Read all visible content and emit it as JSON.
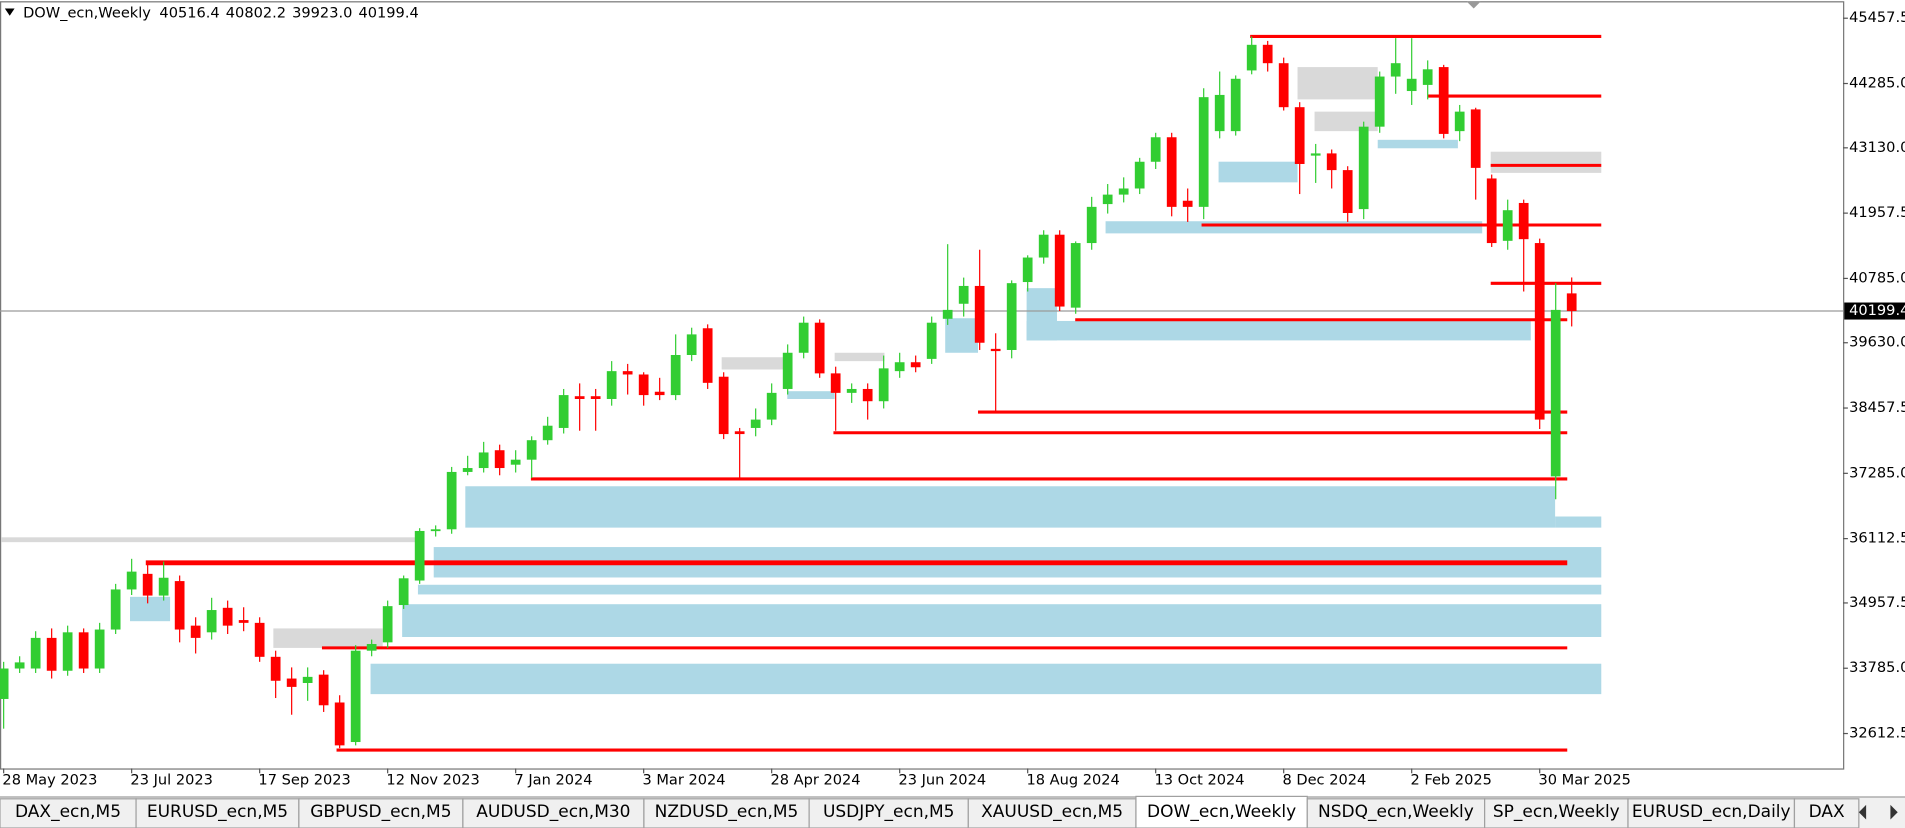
{
  "header": {
    "symbol": "DOW_ecn,Weekly",
    "ohlc": [
      "40516.4",
      "40802.2",
      "39923.0",
      "40199.4"
    ]
  },
  "chart_data": {
    "type": "candlestick",
    "categories": [
      "28 May 2023",
      null,
      null,
      null,
      null,
      null,
      null,
      null,
      "23 Jul 2023",
      null,
      null,
      null,
      null,
      null,
      null,
      null,
      "17 Sep 2023",
      null,
      null,
      null,
      null,
      null,
      null,
      null,
      "12 Nov 2023",
      null,
      null,
      null,
      null,
      null,
      null,
      null,
      "7 Jan 2024",
      null,
      null,
      null,
      null,
      null,
      null,
      null,
      "3 Mar 2024",
      null,
      null,
      null,
      null,
      null,
      null,
      null,
      "28 Apr 2024",
      null,
      null,
      null,
      null,
      null,
      null,
      null,
      "23 Jun 2024",
      null,
      null,
      null,
      null,
      null,
      null,
      null,
      "18 Aug 2024",
      null,
      null,
      null,
      null,
      null,
      null,
      null,
      "13 Oct 2024",
      null,
      null,
      null,
      null,
      null,
      null,
      null,
      "8 Dec 2024",
      null,
      null,
      null,
      null,
      null,
      null,
      null,
      "2 Feb 2025",
      null,
      null,
      null,
      null,
      null,
      null,
      null,
      "30 Mar 2025",
      null,
      null
    ],
    "open": [
      33233,
      33780,
      33780,
      34330,
      33740,
      34430,
      33780,
      34480,
      35200,
      35480,
      35090,
      35350,
      34550,
      34430,
      34870,
      34650,
      34600,
      33990,
      33600,
      33520,
      33670,
      33170,
      32460,
      34100,
      34250,
      34920,
      35360,
      36250,
      36280,
      37310,
      37380,
      37700,
      37440,
      37530,
      37880,
      38100,
      38670,
      38670,
      38620,
      39120,
      39060,
      38750,
      38690,
      39410,
      39890,
      39020,
      38040,
      38100,
      38250,
      38800,
      39450,
      39990,
      39080,
      38730,
      38800,
      38580,
      39120,
      39280,
      39340,
      40060,
      40330,
      40650,
      39520,
      39500,
      40720,
      41160,
      41570,
      40260,
      41420,
      42120,
      42290,
      42400,
      42880,
      43320,
      42180,
      42070,
      43430,
      43430,
      44520,
      44980,
      44650,
      43860,
      42990,
      43030,
      42730,
      42030,
      43510,
      44410,
      44150,
      44260,
      44580,
      43430,
      43820,
      42580,
      41460,
      42140,
      41420,
      37230,
      40516.4
    ],
    "high": [
      33900,
      34000,
      34450,
      34500,
      34550,
      34500,
      34600,
      35300,
      35750,
      35650,
      35700,
      35450,
      34700,
      35050,
      35000,
      34880,
      34700,
      34100,
      33800,
      33800,
      33750,
      33300,
      34200,
      34300,
      35000,
      35450,
      36300,
      36350,
      37400,
      37600,
      37850,
      37800,
      37700,
      37950,
      38300,
      38800,
      38900,
      38800,
      39300,
      39250,
      39100,
      39000,
      39780,
      39900,
      39960,
      39100,
      38100,
      38450,
      38900,
      39600,
      40100,
      40050,
      39200,
      38900,
      38900,
      39400,
      39450,
      39400,
      40100,
      41400,
      40800,
      41300,
      39800,
      40750,
      41200,
      41650,
      41650,
      41450,
      42250,
      42480,
      42600,
      42950,
      43400,
      43400,
      42400,
      44200,
      44500,
      44430,
      45130,
      45050,
      44750,
      43950,
      43200,
      43100,
      42800,
      43600,
      44500,
      45100,
      45100,
      44700,
      44620,
      43900,
      43850,
      42650,
      42200,
      42200,
      41500,
      40700,
      40802.2
    ],
    "low": [
      32700,
      33700,
      33700,
      33600,
      33650,
      33700,
      33700,
      34400,
      35100,
      34950,
      35000,
      34250,
      34050,
      34300,
      34400,
      34450,
      33900,
      33250,
      32950,
      33200,
      33000,
      32350,
      32400,
      34000,
      34150,
      34850,
      35300,
      36150,
      36200,
      37250,
      37300,
      37250,
      37300,
      37200,
      37800,
      38000,
      38050,
      38050,
      38500,
      38700,
      38500,
      38600,
      38600,
      39300,
      38800,
      37900,
      37200,
      37950,
      38150,
      38700,
      39350,
      39000,
      38050,
      38550,
      38250,
      38450,
      39000,
      39100,
      39250,
      39950,
      40100,
      39500,
      38400,
      39350,
      40550,
      41050,
      40200,
      40150,
      41300,
      41950,
      42150,
      42300,
      42750,
      41900,
      41800,
      41850,
      43300,
      43350,
      44450,
      44500,
      43800,
      42300,
      42500,
      42400,
      41800,
      41850,
      43400,
      44100,
      43900,
      44000,
      43300,
      43250,
      42200,
      41350,
      41300,
      40550,
      38080,
      36820,
      39923.0
    ],
    "close": [
      33780,
      33890,
      34330,
      33740,
      34430,
      33780,
      34480,
      35200,
      35520,
      35090,
      35410,
      34480,
      34330,
      34830,
      34550,
      34600,
      33990,
      33560,
      33450,
      33630,
      33120,
      32400,
      34100,
      34220,
      34900,
      35400,
      36250,
      36280,
      37310,
      37380,
      37660,
      37380,
      37530,
      37880,
      38140,
      38690,
      38620,
      38620,
      39120,
      39060,
      38690,
      38690,
      39410,
      39780,
      38910,
      37990,
      37990,
      38250,
      38730,
      39450,
      39990,
      39080,
      38730,
      38800,
      38580,
      39170,
      39280,
      39190,
      39990,
      40220,
      40650,
      39630,
      39480,
      40700,
      41160,
      41570,
      40280,
      41420,
      42070,
      42290,
      42400,
      42880,
      43320,
      42070,
      42070,
      44040,
      44080,
      44370,
      44980,
      44650,
      43860,
      42840,
      43030,
      42730,
      41960,
      43510,
      44410,
      44650,
      44370,
      44540,
      43380,
      43780,
      42770,
      41420,
      42010,
      41490,
      38250,
      40220,
      40199.4
    ],
    "up_color": "#32cd32",
    "down_color": "#ff0000",
    "current_price": 40199.4,
    "levels": {
      "color": "#ff0000",
      "prices": [
        45130,
        44060,
        42815,
        41745,
        40697,
        40043,
        38385,
        38013,
        37184,
        35678,
        34150,
        32316
      ]
    },
    "zones": [
      {
        "low": 36310,
        "high": 37053,
        "color": "#add8e6"
      },
      {
        "low": 36310,
        "high": 36510,
        "color": "#add8e6"
      },
      {
        "low": 35415,
        "high": 35961,
        "color": "#add8e6"
      },
      {
        "low": 35110,
        "high": 35284,
        "color": "#add8e6"
      },
      {
        "low": 34346,
        "high": 34935,
        "color": "#add8e6"
      },
      {
        "low": 33320,
        "high": 33866,
        "color": "#add8e6"
      },
      {
        "low": 34630,
        "high": 35067,
        "color": "#add8e6"
      },
      {
        "low": 39672,
        "high": 40021,
        "color": "#add8e6"
      },
      {
        "low": 39672,
        "high": 40610,
        "color": "#add8e6"
      },
      {
        "low": 39450,
        "high": 40070,
        "color": "#add8e6"
      },
      {
        "low": 41594,
        "high": 41812,
        "color": "#add8e6"
      },
      {
        "low": 42510,
        "high": 42881,
        "color": "#add8e6"
      },
      {
        "low": 43122,
        "high": 43274,
        "color": "#add8e6"
      },
      {
        "low": 36049,
        "high": 36136,
        "color": "#d9d9d9"
      },
      {
        "low": 34150,
        "high": 34500,
        "color": "#d9d9d9"
      },
      {
        "low": 39150,
        "high": 39370,
        "color": "#d9d9d9"
      },
      {
        "low": 39300,
        "high": 39450,
        "color": "#d9d9d9"
      },
      {
        "low": 44000,
        "high": 44580,
        "color": "#d9d9d9"
      },
      {
        "low": 43430,
        "high": 43780,
        "color": "#d9d9d9"
      },
      {
        "low": 42680,
        "high": 43060,
        "color": "#d9d9d9"
      },
      {
        "low": 38620,
        "high": 38760,
        "color": "#add8e6"
      }
    ],
    "ylim": [
      31986,
      45741
    ],
    "yticks": [
      45457.5,
      {
        "value": 44285,
        "label": "44285.0"
      },
      {
        "value": 43130,
        "label": "43130.0"
      },
      41957.5,
      {
        "value": 40785,
        "label": "40785.0"
      },
      {
        "value": 39630,
        "label": "39630.0"
      },
      38457.5,
      {
        "value": 37285,
        "label": "37285.0"
      },
      36112.5,
      34957.5,
      {
        "value": 33785,
        "label": "33785.0"
      },
      32612.5
    ]
  },
  "tabs": [
    "DAX_ecn,M5",
    "EURUSD_ecn,M5",
    "GBPUSD_ecn,M5",
    "AUDUSD_ecn,M30",
    "NZDUSD_ecn,M5",
    "USDJPY_ecn,M5",
    "XAUUSD_ecn,M5",
    "DOW_ecn,Weekly",
    "NSDQ_ecn,Weekly",
    "SP_ecn,Weekly",
    "EURUSD_ecn,Daily",
    "DAX"
  ],
  "active_tab": 7
}
